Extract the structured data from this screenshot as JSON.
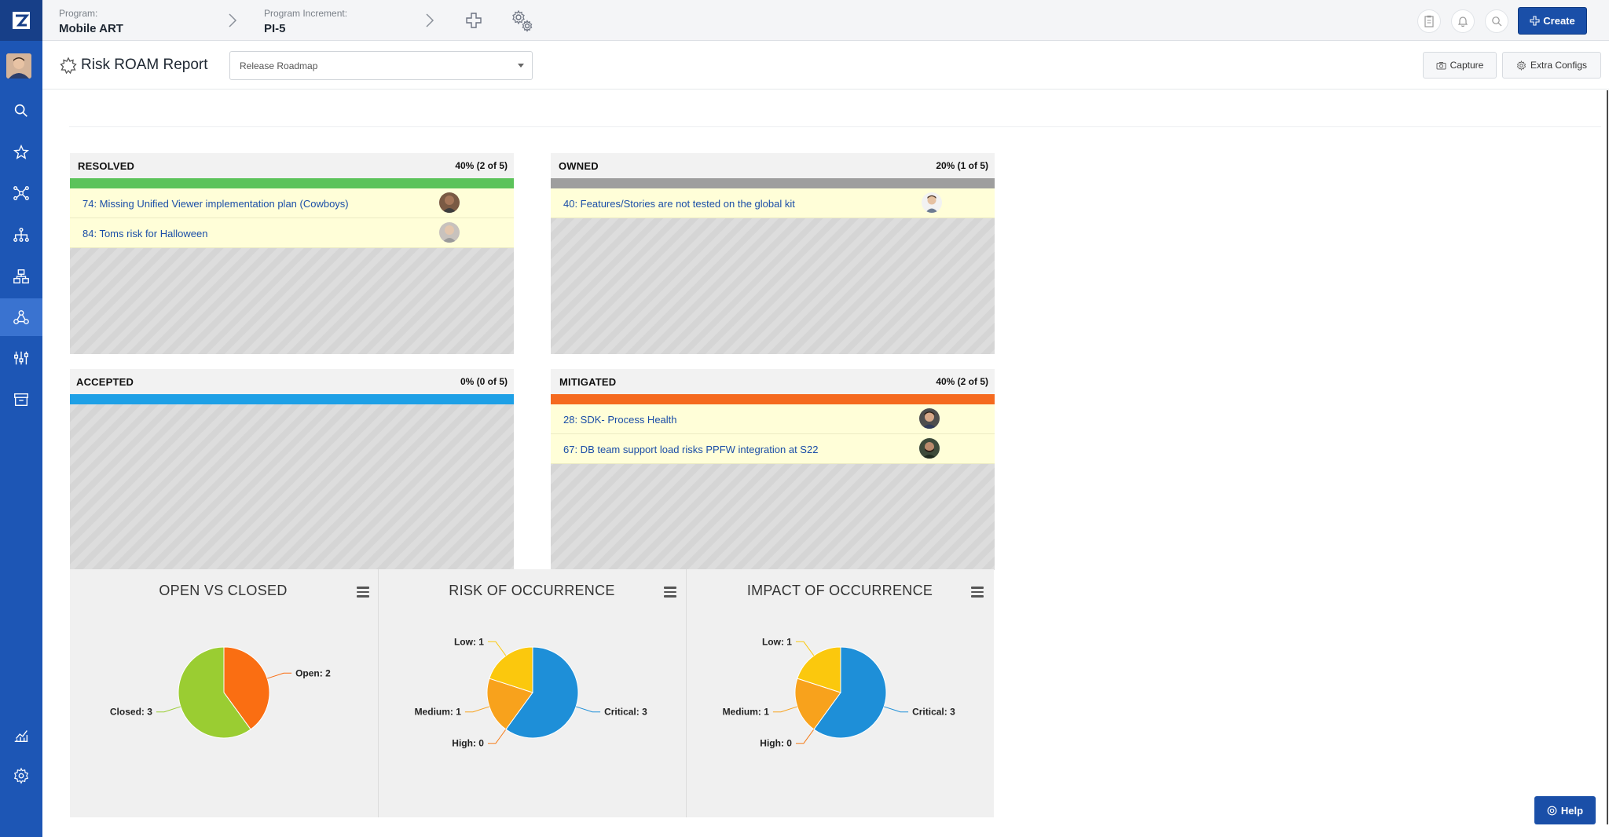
{
  "topbar": {
    "program_label": "Program:",
    "program_value": "Mobile ART",
    "increment_label": "Program Increment:",
    "increment_value": "PI-5",
    "create_label": "Create"
  },
  "header": {
    "title": "Risk ROAM Report",
    "roadmap_select": "Release Roadmap",
    "capture_label": "Capture",
    "extra_configs_label": "Extra Configs"
  },
  "quadrants": {
    "resolved": {
      "name": "RESOLVED",
      "pct": "40% (2 of 5)",
      "color": "#5cc35a",
      "risks": [
        "74: Missing Unified Viewer implementation plan (Cowboys)",
        "84: Toms risk for Halloween"
      ]
    },
    "owned": {
      "name": "OWNED",
      "pct": "20% (1 of 5)",
      "color": "#9e9e9e",
      "risks": [
        "40: Features/Stories are not tested on the global kit"
      ]
    },
    "accepted": {
      "name": "ACCEPTED",
      "pct": "0% (0 of 5)",
      "color": "#1ea0e6",
      "risks": []
    },
    "mitigated": {
      "name": "MITIGATED",
      "pct": "40% (2 of 5)",
      "color": "#f56a1f",
      "risks": [
        "28: SDK- Process Health",
        "67: DB team support load risks PPFW integration at S22"
      ]
    }
  },
  "chart_data": [
    {
      "type": "pie",
      "title": "OPEN VS CLOSED",
      "categories": [
        "Open",
        "Closed"
      ],
      "values": [
        2,
        3
      ],
      "labels": [
        "Open: 2",
        "Closed: 3"
      ],
      "colors": [
        "#fa6e12",
        "#9acd32"
      ]
    },
    {
      "type": "pie",
      "title": "RISK OF OCCURRENCE",
      "categories": [
        "Critical",
        "High",
        "Medium",
        "Low"
      ],
      "values": [
        3,
        0,
        1,
        1
      ],
      "labels": [
        "Critical: 3",
        "High: 0",
        "Medium: 1",
        "Low: 1"
      ],
      "colors": [
        "#1e8fd8",
        "#f57c18",
        "#f8a21c",
        "#fbc80d"
      ]
    },
    {
      "type": "pie",
      "title": "IMPACT OF OCCURRENCE",
      "categories": [
        "Critical",
        "High",
        "Medium",
        "Low"
      ],
      "values": [
        3,
        0,
        1,
        1
      ],
      "labels": [
        "Critical: 3",
        "High: 0",
        "Medium: 1",
        "Low: 1"
      ],
      "colors": [
        "#1e8fd8",
        "#f57c18",
        "#f8a21c",
        "#fbc80d"
      ]
    }
  ],
  "help_label": "Help",
  "icons": [
    "search-icon",
    "star-icon",
    "network-icon",
    "hierarchy-icon",
    "org-chart-icon",
    "roam-icon",
    "sliders-icon",
    "archive-icon",
    "analytics-icon",
    "gear-icon",
    "plus-icon",
    "settings-icon",
    "clipboard-icon",
    "bell-icon",
    "camera-icon",
    "menu-icon"
  ]
}
